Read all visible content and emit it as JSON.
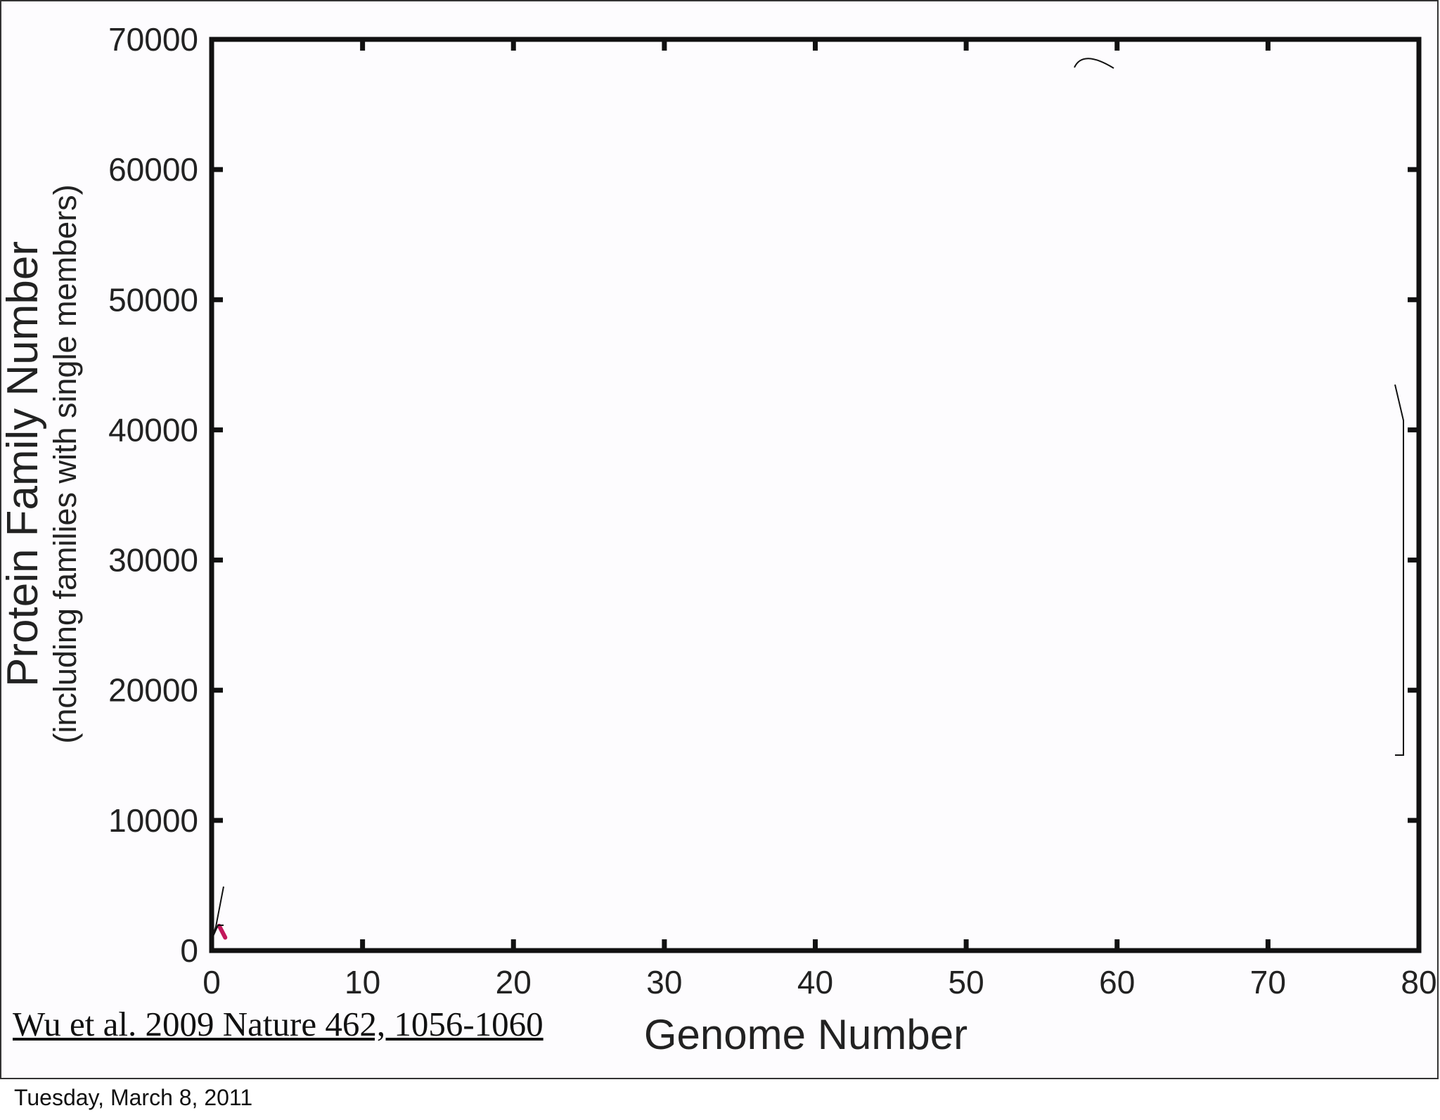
{
  "chart_data": {
    "type": "line",
    "title": "",
    "xlabel": "Genome Number",
    "ylabel": "Protein Family Number",
    "ylabel_sub": "(including families with single members)",
    "xlim": [
      0,
      80
    ],
    "ylim": [
      0,
      70000
    ],
    "xticks": [
      0,
      10,
      20,
      30,
      40,
      50,
      60,
      70,
      80
    ],
    "xtick_labels": [
      "0",
      "10",
      "20",
      "30",
      "40",
      "50",
      "60",
      "70",
      "80"
    ],
    "yticks": [
      0,
      10000,
      20000,
      30000,
      40000,
      50000,
      60000,
      70000
    ],
    "ytick_labels": [
      "0",
      "10000",
      "20000",
      "30000",
      "40000",
      "50000",
      "60000",
      "70000"
    ],
    "grid": false,
    "series": [
      {
        "color": "#c2185b",
        "x": [
          0.5,
          0.9
        ],
        "y": [
          1900,
          1000
        ]
      }
    ]
  },
  "citation": "Wu et al. 2009 Nature 462, 1056-1060",
  "footer_date": "Tuesday, March 8, 2011",
  "colors": {
    "axis": "#111111",
    "text": "#222222",
    "background": "#fdfcfe",
    "series": "#c2185b"
  }
}
